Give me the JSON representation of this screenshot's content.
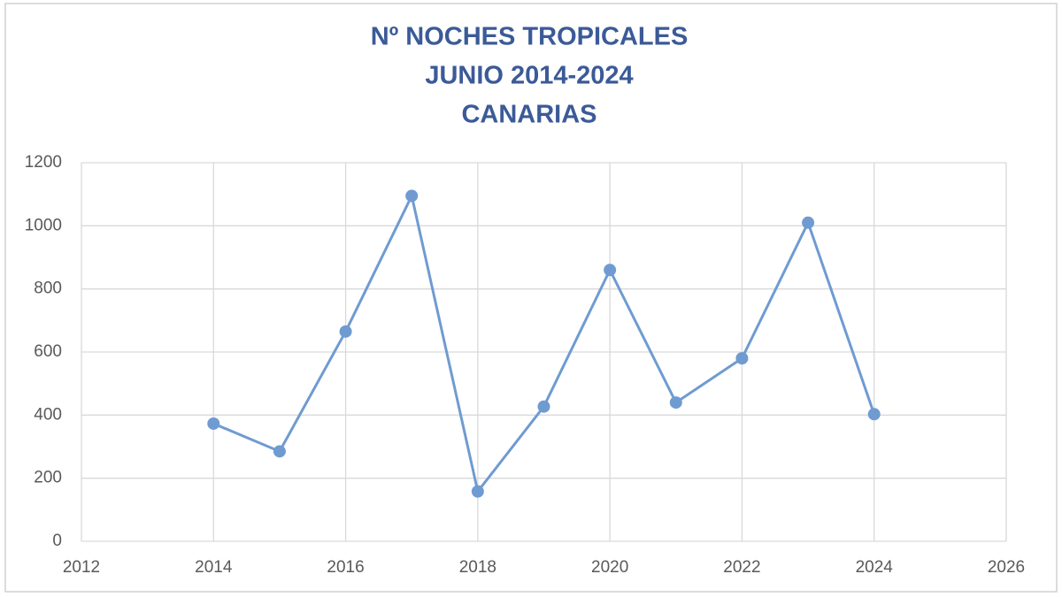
{
  "chart_data": {
    "type": "line",
    "title": [
      "Nº NOCHES TROPICALES",
      "JUNIO 2014-2024",
      "CANARIAS"
    ],
    "title_color": "#3b5a98",
    "x": [
      2014,
      2015,
      2016,
      2017,
      2018,
      2019,
      2020,
      2021,
      2022,
      2023,
      2024
    ],
    "series": [
      {
        "color": "#6f9bd1",
        "values": [
          373,
          285,
          665,
          1095,
          158,
          427,
          860,
          440,
          580,
          1010,
          403
        ]
      }
    ],
    "xlim": [
      2012,
      2026
    ],
    "xticks": [
      2012,
      2014,
      2016,
      2018,
      2020,
      2022,
      2024,
      2026
    ],
    "ylim": [
      0,
      1200
    ],
    "yticks": [
      0,
      200,
      400,
      600,
      800,
      1000,
      1200
    ],
    "grid": true
  }
}
